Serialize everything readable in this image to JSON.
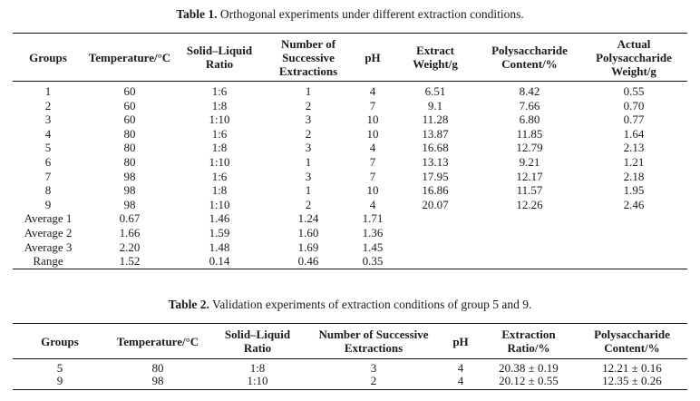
{
  "table1": {
    "caption_label": "Table 1.",
    "caption_text": " Orthogonal experiments under different extraction conditions.",
    "headers": [
      "Groups",
      "Temperature/°C",
      "Solid–Liquid Ratio",
      "Number of Successive Extractions",
      "pH",
      "Extract Weight/g",
      "Polysaccharide Content/%",
      "Actual Polysaccharide Weight/g"
    ],
    "rows": [
      [
        "1",
        "60",
        "1:6",
        "1",
        "4",
        "6.51",
        "8.42",
        "0.55"
      ],
      [
        "2",
        "60",
        "1:8",
        "2",
        "7",
        "9.1",
        "7.66",
        "0.70"
      ],
      [
        "3",
        "60",
        "1:10",
        "3",
        "10",
        "11.28",
        "6.80",
        "0.77"
      ],
      [
        "4",
        "80",
        "1:6",
        "2",
        "10",
        "13.87",
        "11.85",
        "1.64"
      ],
      [
        "5",
        "80",
        "1:8",
        "3",
        "4",
        "16.68",
        "12.79",
        "2.13"
      ],
      [
        "6",
        "80",
        "1:10",
        "1",
        "7",
        "13.13",
        "9.21",
        "1.21"
      ],
      [
        "7",
        "98",
        "1:6",
        "3",
        "7",
        "17.95",
        "12.17",
        "2.18"
      ],
      [
        "8",
        "98",
        "1:8",
        "1",
        "10",
        "16.86",
        "11.57",
        "1.95"
      ],
      [
        "9",
        "98",
        "1:10",
        "2",
        "4",
        "20.07",
        "12.26",
        "2.46"
      ],
      [
        "Average 1",
        "0.67",
        "1.46",
        "1.24",
        "1.71",
        "",
        "",
        ""
      ],
      [
        "Average 2",
        "1.66",
        "1.59",
        "1.60",
        "1.36",
        "",
        "",
        ""
      ],
      [
        "Average 3",
        "2.20",
        "1.48",
        "1.69",
        "1.45",
        "",
        "",
        ""
      ],
      [
        "Range",
        "1.52",
        "0.14",
        "0.46",
        "0.35",
        "",
        "",
        ""
      ]
    ]
  },
  "table2": {
    "caption_label": "Table 2.",
    "caption_text": " Validation experiments of extraction conditions of group 5 and 9.",
    "headers": [
      "Groups",
      "Temperature/°C",
      "Solid–Liquid Ratio",
      "Number of Successive Extractions",
      "pH",
      "Extraction Ratio/%",
      "Polysaccharide Content/%"
    ],
    "rows": [
      [
        "5",
        "80",
        "1:8",
        "3",
        "4",
        "20.38 ± 0.19",
        "12.21 ± 0.16"
      ],
      [
        "9",
        "98",
        "1:10",
        "2",
        "4",
        "20.12 ± 0.55",
        "12.35 ± 0.26"
      ]
    ]
  }
}
